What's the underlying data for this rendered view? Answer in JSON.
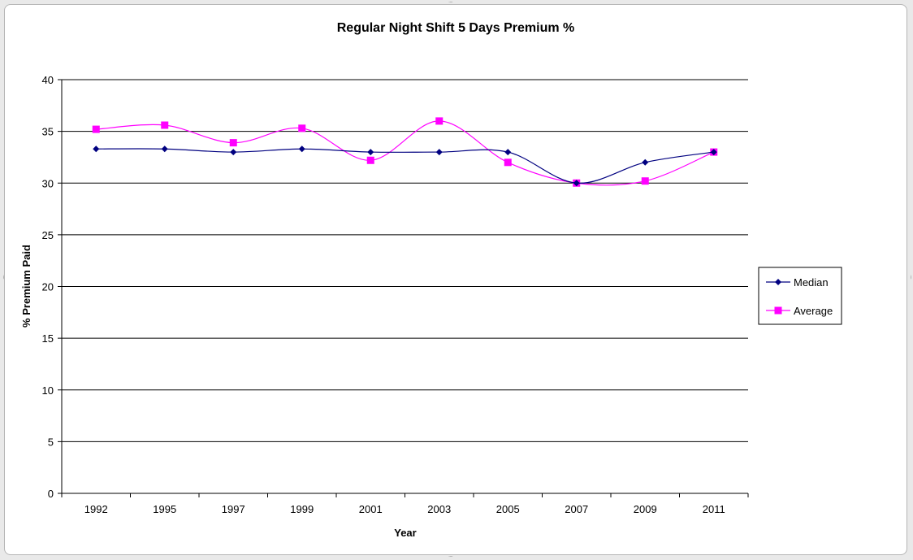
{
  "chart_data": {
    "type": "line",
    "title": "Regular Night Shift 5 Days Premium %",
    "xlabel": "Year",
    "ylabel": "% Premium Paid",
    "categories": [
      "1992",
      "1995",
      "1997",
      "1999",
      "2001",
      "2003",
      "2005",
      "2007",
      "2009",
      "2011"
    ],
    "ylim": [
      0,
      40
    ],
    "yticks": [
      0,
      5,
      10,
      15,
      20,
      25,
      30,
      35,
      40
    ],
    "grid": true,
    "legend_position": "right",
    "series": [
      {
        "name": "Median",
        "color": "#000080",
        "marker": "diamond",
        "values": [
          33.3,
          33.3,
          33.0,
          33.3,
          33.0,
          33.0,
          33.0,
          30.0,
          32.0,
          33.0
        ]
      },
      {
        "name": "Average",
        "color": "#ff00ff",
        "marker": "square",
        "values": [
          35.2,
          35.6,
          33.9,
          35.3,
          32.2,
          36.0,
          32.0,
          30.0,
          30.2,
          33.0
        ]
      }
    ]
  }
}
